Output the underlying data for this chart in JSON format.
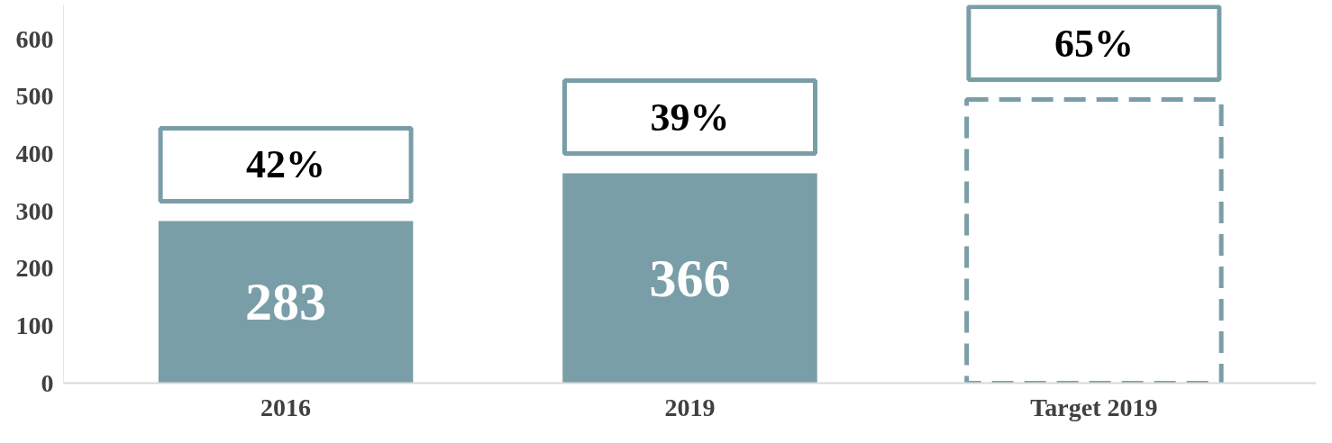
{
  "chart_data": {
    "type": "bar",
    "categories": [
      "2016",
      "2019",
      "Target 2019"
    ],
    "series": [
      {
        "color": "#7a9ea7",
        "values": [
          283,
          366,
          null
        ],
        "value_labels": [
          "283",
          "366",
          null
        ]
      },
      {
        "color": "#7a9ea7",
        "values": [
          null,
          null,
          495
        ],
        "line_style": "dashed"
      }
    ],
    "ylim": [
      0,
      660
    ],
    "yticks": [
      0,
      100,
      200,
      300,
      400,
      500,
      600
    ],
    "grid": false,
    "annotations": [
      "42%",
      "39%",
      "65%"
    ]
  }
}
